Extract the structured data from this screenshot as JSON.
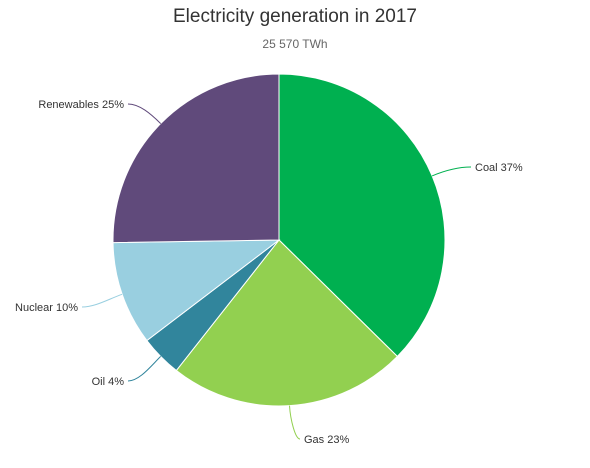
{
  "chart_data": {
    "type": "pie",
    "title": "Electricity generation in 2017",
    "subtitle": "25 570 TWh",
    "slices": [
      {
        "name": "Coal",
        "value": 37,
        "label": "Coal 37%",
        "color": "#00b050"
      },
      {
        "name": "Gas",
        "value": 23,
        "label": "Gas 23%",
        "color": "#92d050"
      },
      {
        "name": "Oil",
        "value": 4,
        "label": "Oil 4%",
        "color": "#31859c"
      },
      {
        "name": "Nuclear",
        "value": 10,
        "label": "Nuclear 10%",
        "color": "#99cfe0"
      },
      {
        "name": "Renewables",
        "value": 25,
        "label": "Renewables 25%",
        "color": "#604a7b"
      }
    ]
  }
}
